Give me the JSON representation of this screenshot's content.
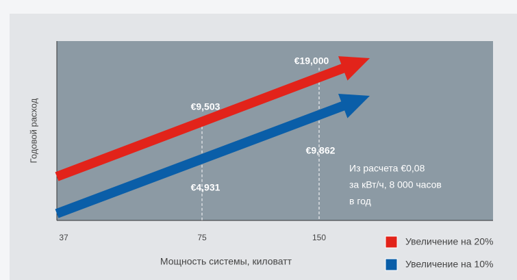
{
  "chart_data": {
    "type": "line",
    "categories": [
      "37",
      "75",
      "150"
    ],
    "series": [
      {
        "name": "Увеличение на 20%",
        "color": "#e2231a",
        "values": [
          null,
          9503,
          19000
        ],
        "value_labels": [
          null,
          "€9,503",
          "€19,000"
        ]
      },
      {
        "name": "Увеличение на 10%",
        "color": "#0a5ea8",
        "values": [
          null,
          4931,
          9862
        ],
        "value_labels": [
          null,
          "€4,931",
          "€9,862"
        ]
      }
    ],
    "xlabel": "Мощность системы, киловатт",
    "ylabel": "Годовой расход",
    "annotation": [
      "Из расчета €0,08",
      "за кВт/ч, 8 000 часов",
      "в год"
    ]
  }
}
